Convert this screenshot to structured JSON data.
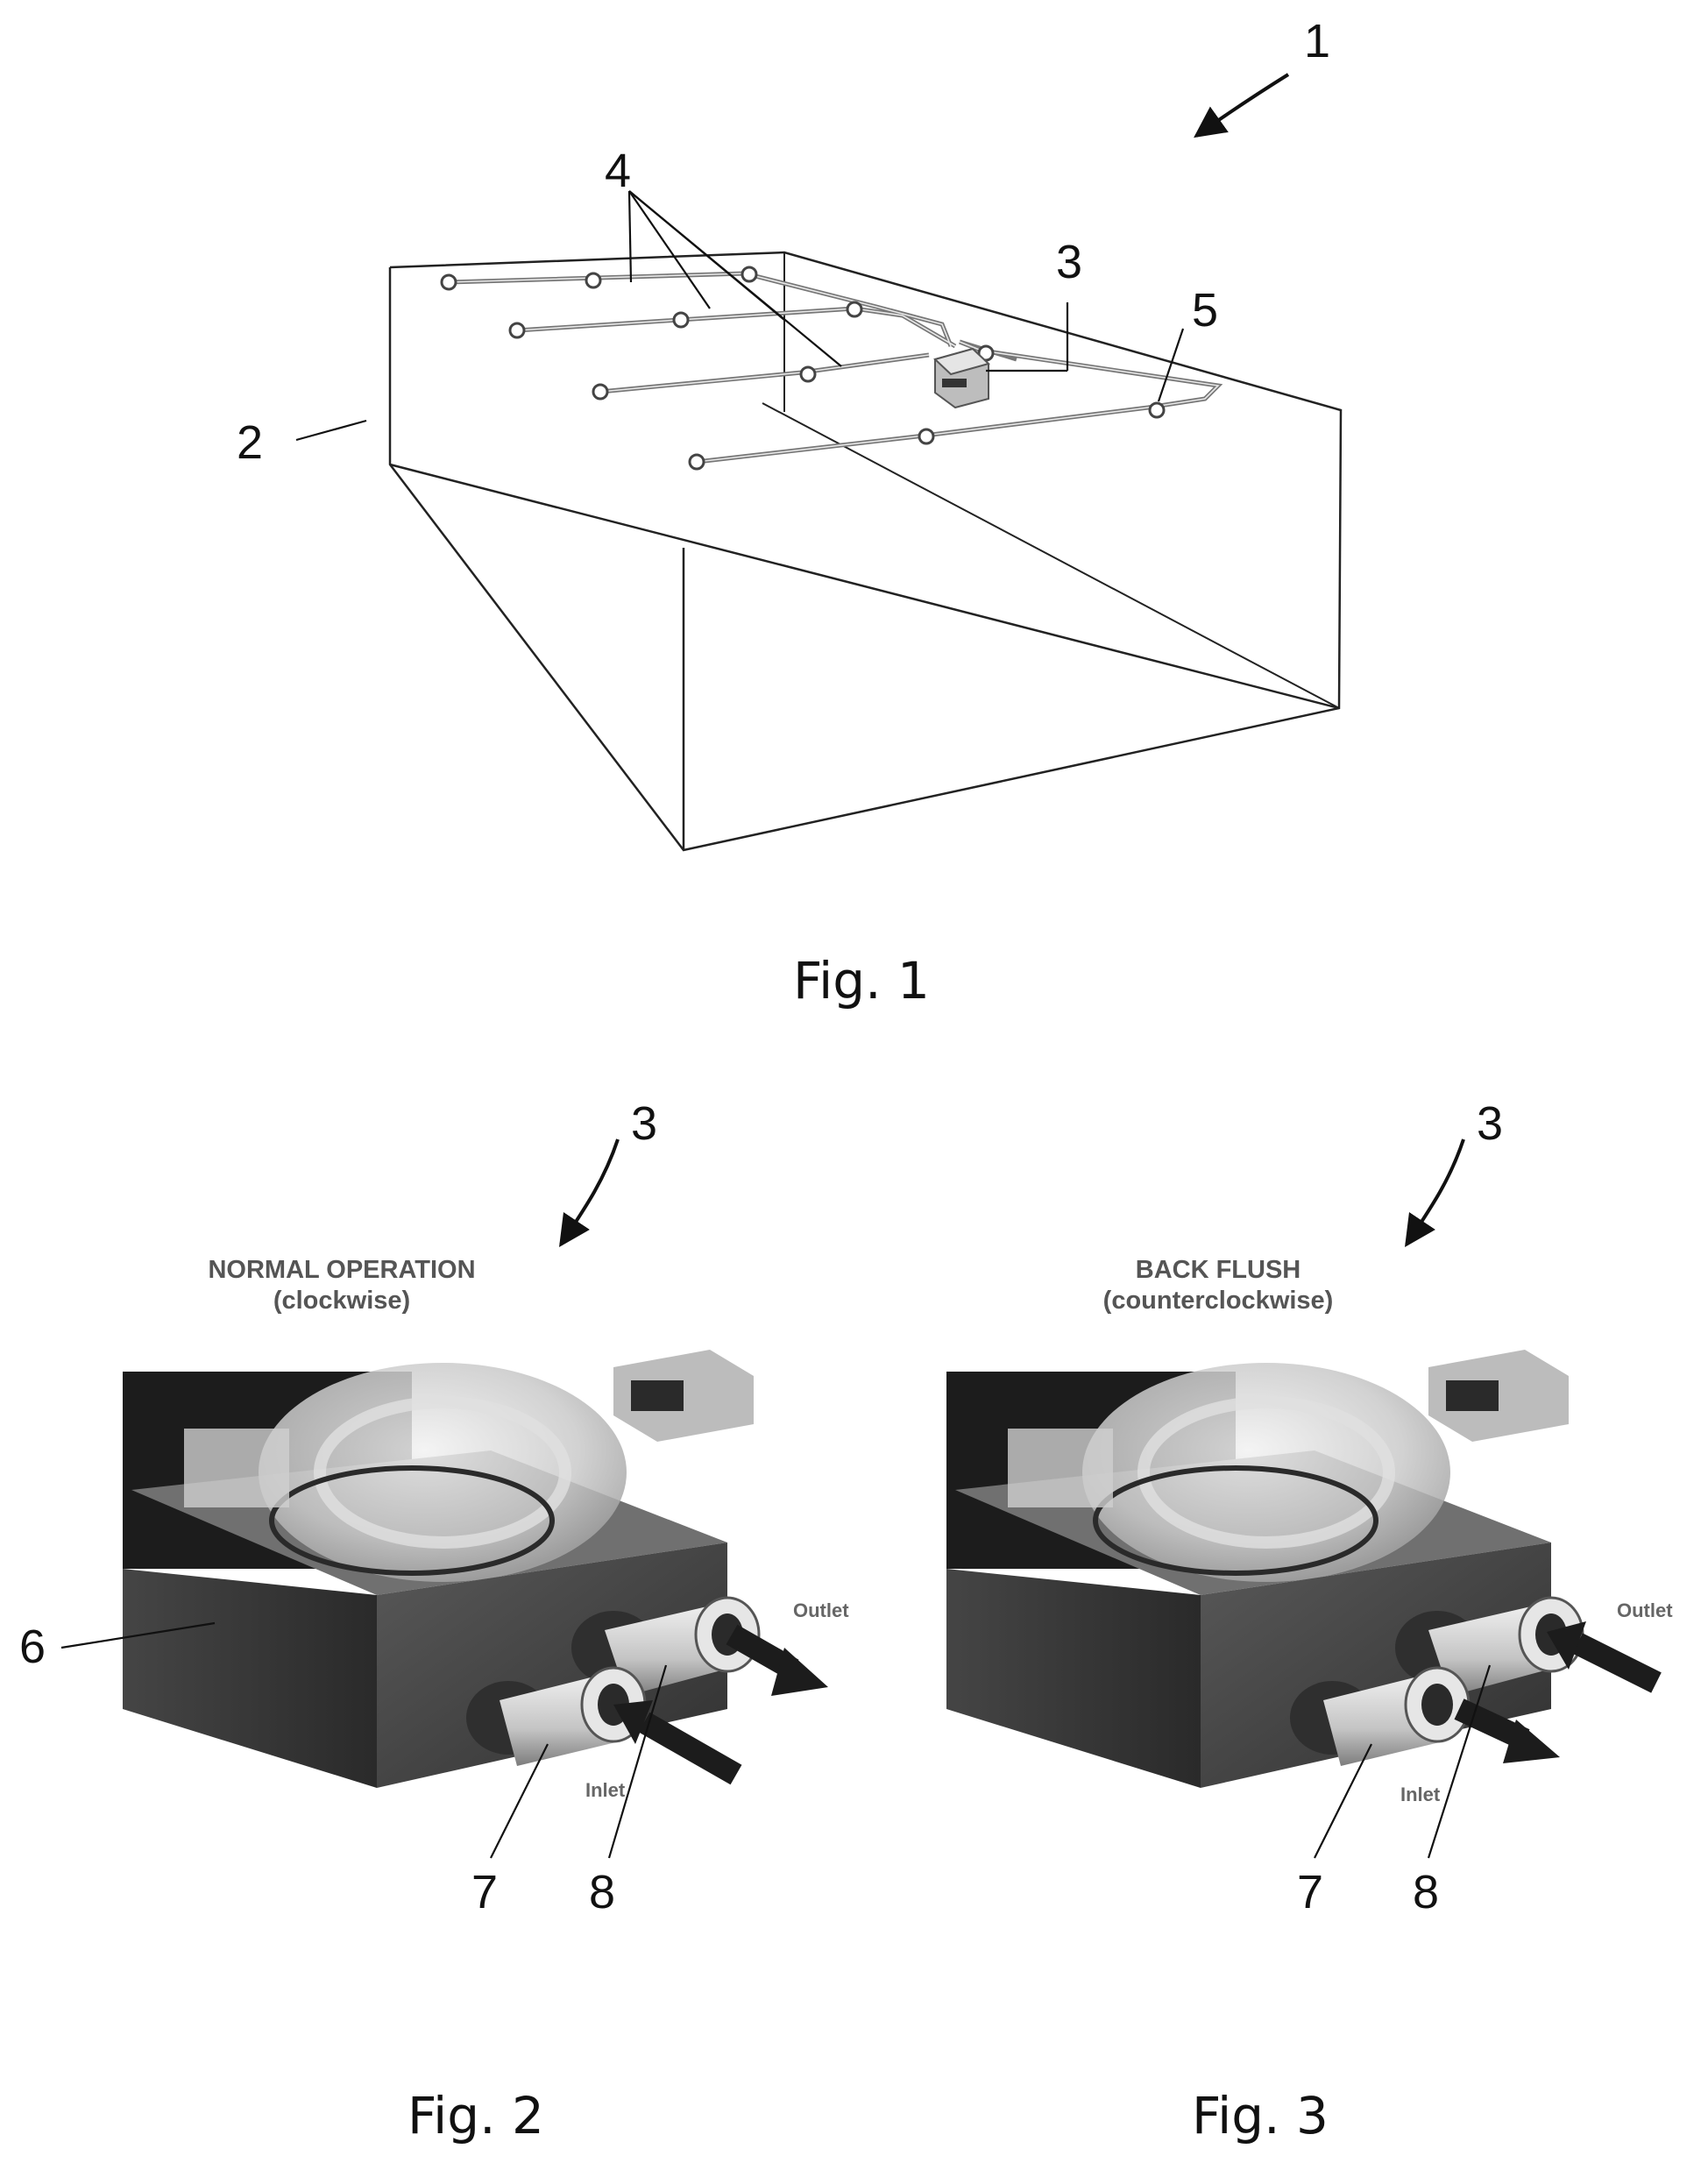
{
  "figure1": {
    "caption": "Fig. 1",
    "refs": {
      "system": "1",
      "tank": "2",
      "pump": "3",
      "lines": "4",
      "nozzle": "5"
    }
  },
  "figure2": {
    "caption": "Fig. 2",
    "ref_pump": "3",
    "mode_title": "NORMAL OPERATION",
    "mode_sub": "(clockwise)",
    "outlet_label": "Outlet",
    "inlet_label": "Inlet",
    "refs": {
      "housing": "6",
      "inlet_port": "7",
      "outlet_port": "8"
    }
  },
  "figure3": {
    "caption": "Fig. 3",
    "ref_pump": "3",
    "mode_title": "BACK FLUSH",
    "mode_sub": "(counterclockwise)",
    "outlet_label": "Outlet",
    "inlet_label": "Inlet",
    "refs": {
      "inlet_port": "7",
      "outlet_port": "8"
    }
  }
}
